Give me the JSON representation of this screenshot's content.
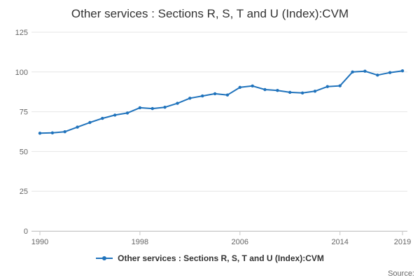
{
  "header": {
    "title": "Other services : Sections R, S, T and U (Index):CVM"
  },
  "chart_data": {
    "type": "line",
    "title": "Other services : Sections R, S, T and U (Index):CVM",
    "x": [
      1990,
      1991,
      1992,
      1993,
      1994,
      1995,
      1996,
      1997,
      1998,
      1999,
      2000,
      2001,
      2002,
      2003,
      2004,
      2005,
      2006,
      2007,
      2008,
      2009,
      2010,
      2011,
      2012,
      2013,
      2014,
      2015,
      2016,
      2017,
      2018,
      2019
    ],
    "series": [
      {
        "name": "Other services : Sections R, S, T and U (Index):CVM",
        "color": "#2073bc",
        "values": [
          61.5,
          61.7,
          62.4,
          65.3,
          68.2,
          70.8,
          72.9,
          74.2,
          77.5,
          77.0,
          77.8,
          80.3,
          83.5,
          84.9,
          86.3,
          85.5,
          90.3,
          91.2,
          88.9,
          88.4,
          87.2,
          86.8,
          87.9,
          90.8,
          91.3,
          100.0,
          100.5,
          98.0,
          99.6,
          100.7
        ]
      }
    ],
    "xlabel": "",
    "ylabel": "",
    "ylim": [
      0,
      125
    ],
    "yticks": [
      0,
      25,
      50,
      75,
      100,
      125
    ],
    "xticks": [
      1990,
      1998,
      2006,
      2014,
      2019
    ],
    "grid": "horizontal",
    "legend_position": "bottom",
    "grid_color": "#e6e6e6",
    "axis_color": "#c6c6c6",
    "tick_label_color": "#666666"
  },
  "footer": {
    "source_label": "Source:"
  }
}
